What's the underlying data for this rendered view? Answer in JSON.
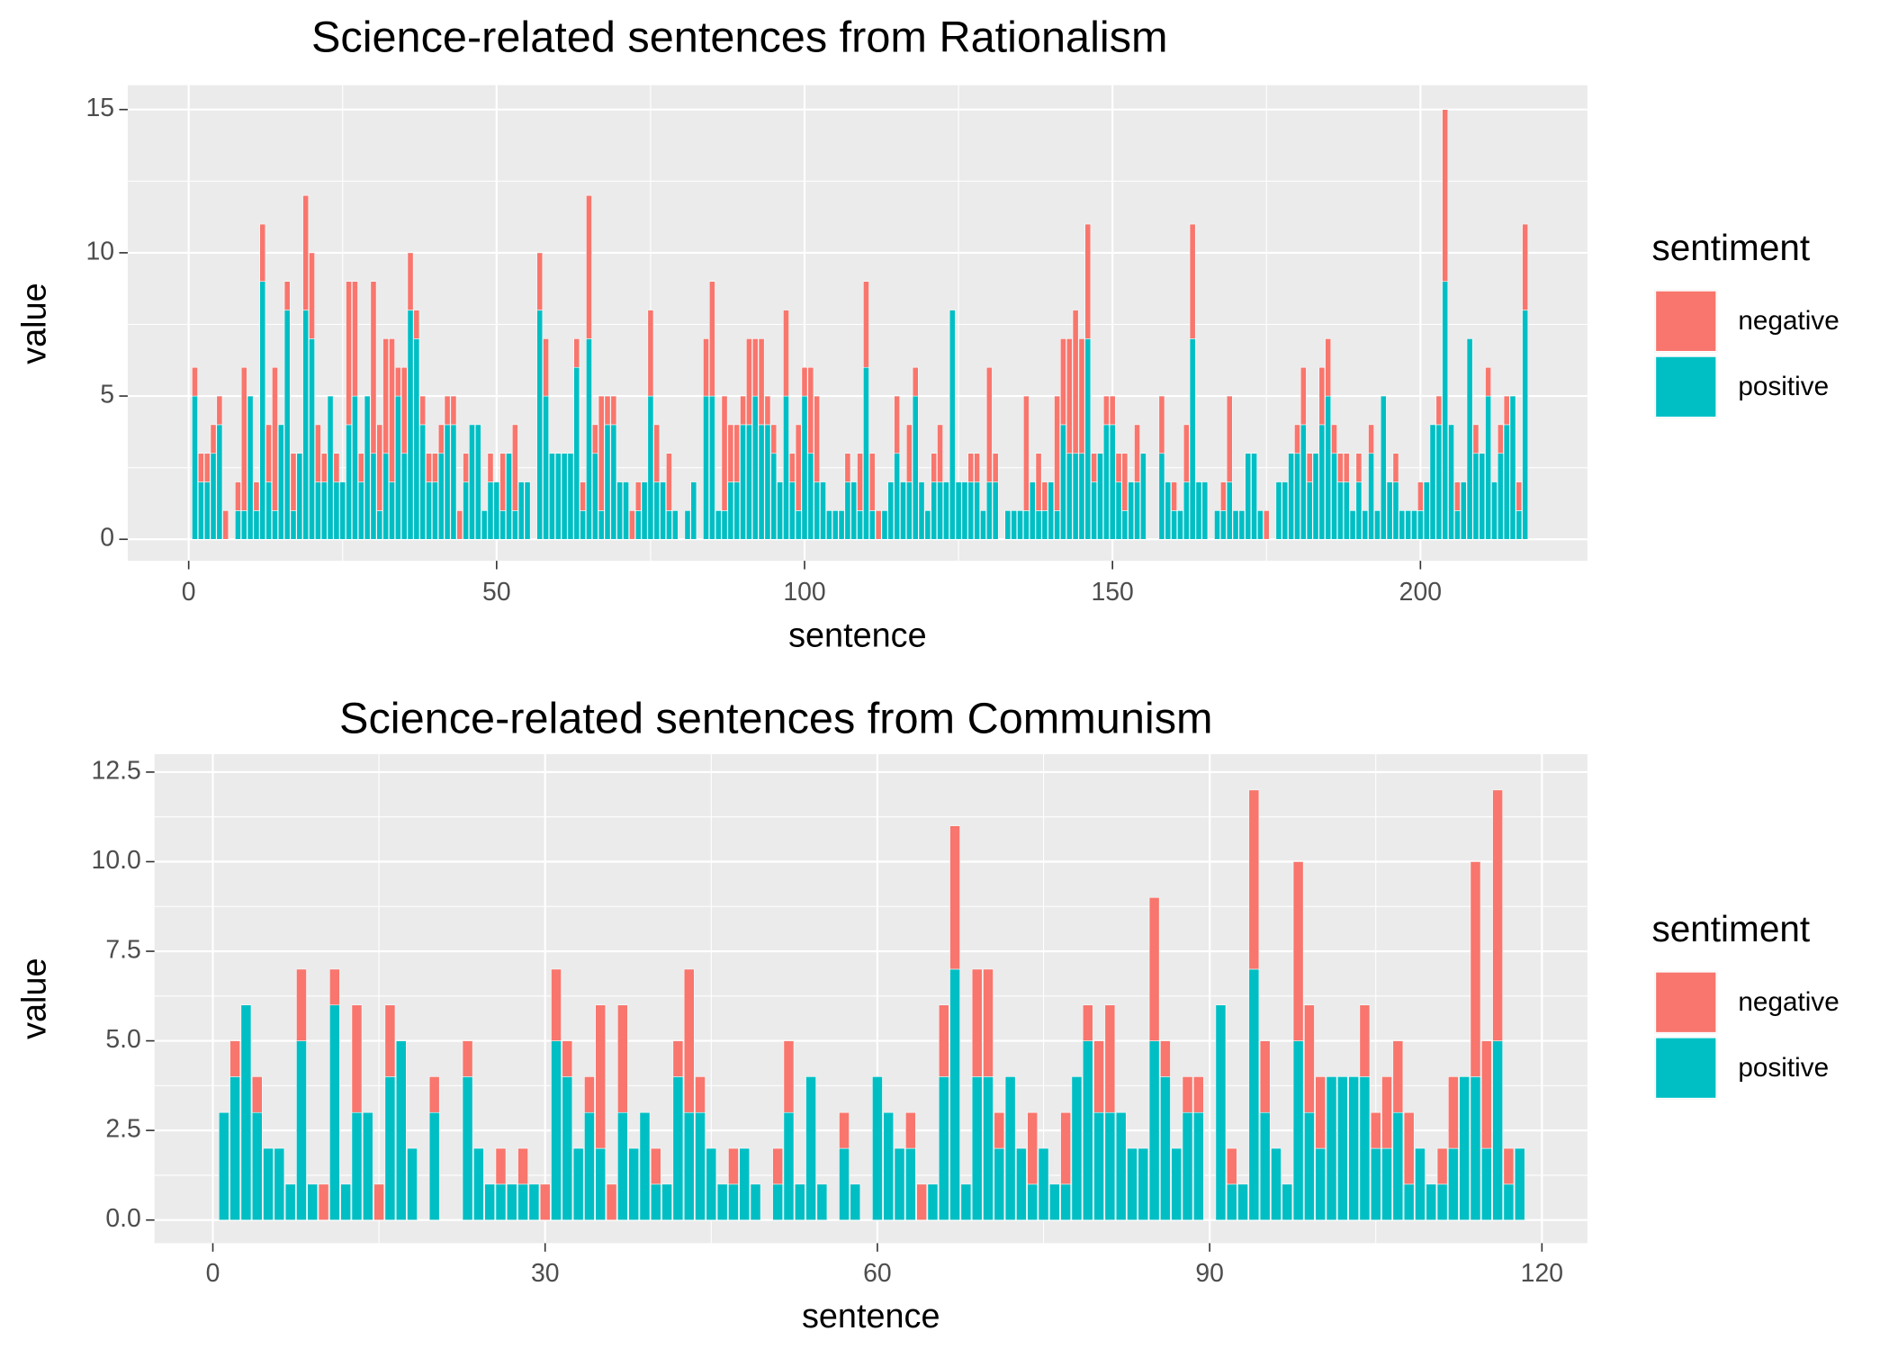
{
  "chart_data": [
    {
      "type": "bar",
      "stacked": true,
      "title": "Science-related sentences from Rationalism",
      "x_label": "sentence",
      "y_label": "value",
      "legend_title": "sentiment",
      "grid": true,
      "x": [
        1,
        2,
        3,
        4,
        5,
        6,
        8,
        9,
        10,
        11,
        12,
        13,
        14,
        15,
        16,
        17,
        18,
        19,
        20,
        21,
        22,
        23,
        24,
        25,
        26,
        27,
        28,
        29,
        30,
        31,
        32,
        33,
        34,
        35,
        36,
        37,
        38,
        39,
        40,
        41,
        42,
        43,
        44,
        45,
        46,
        47,
        48,
        49,
        50,
        51,
        52,
        53,
        54,
        55,
        57,
        58,
        59,
        60,
        61,
        62,
        63,
        64,
        65,
        66,
        67,
        68,
        69,
        70,
        71,
        72,
        73,
        74,
        75,
        76,
        77,
        78,
        79,
        81,
        82,
        84,
        85,
        86,
        87,
        88,
        89,
        90,
        91,
        92,
        93,
        94,
        95,
        96,
        97,
        98,
        99,
        100,
        101,
        102,
        103,
        104,
        105,
        106,
        107,
        108,
        109,
        110,
        111,
        112,
        113,
        114,
        115,
        116,
        117,
        118,
        119,
        120,
        121,
        122,
        123,
        124,
        125,
        126,
        127,
        128,
        129,
        130,
        131,
        133,
        134,
        135,
        136,
        137,
        138,
        139,
        140,
        141,
        142,
        143,
        144,
        145,
        146,
        147,
        148,
        149,
        150,
        151,
        152,
        153,
        154,
        155,
        158,
        159,
        160,
        161,
        162,
        163,
        164,
        165,
        167,
        168,
        169,
        170,
        171,
        172,
        173,
        174,
        175,
        177,
        178,
        179,
        180,
        181,
        182,
        183,
        184,
        185,
        186,
        187,
        188,
        189,
        190,
        191,
        192,
        193,
        194,
        195,
        196,
        197,
        198,
        199,
        200,
        201,
        202,
        203,
        204,
        205,
        206,
        207,
        208,
        209,
        210,
        211,
        212,
        213,
        214,
        215,
        216,
        217
      ],
      "series": [
        {
          "name": "negative",
          "color": "#F8766D",
          "values": [
            1,
            1,
            1,
            1,
            1,
            1,
            1,
            5,
            0,
            1,
            2,
            2,
            5,
            0,
            1,
            2,
            0,
            4,
            3,
            2,
            1,
            0,
            1,
            0,
            5,
            4,
            1,
            0,
            6,
            3,
            4,
            5,
            1,
            3,
            2,
            1,
            1,
            1,
            1,
            1,
            1,
            1,
            1,
            1,
            0,
            0,
            0,
            1,
            0,
            2,
            0,
            3,
            0,
            0,
            2,
            2,
            0,
            0,
            0,
            0,
            1,
            1,
            5,
            1,
            4,
            1,
            1,
            0,
            0,
            1,
            1,
            0,
            3,
            2,
            0,
            2,
            0,
            0,
            0,
            2,
            4,
            0,
            4,
            2,
            2,
            1,
            3,
            2,
            3,
            1,
            1,
            0,
            3,
            1,
            3,
            1,
            3,
            3,
            0,
            0,
            0,
            0,
            1,
            0,
            2,
            3,
            2,
            1,
            0,
            0,
            2,
            0,
            2,
            1,
            0,
            0,
            1,
            2,
            0,
            0,
            0,
            0,
            1,
            1,
            0,
            4,
            1,
            0,
            0,
            0,
            4,
            0,
            2,
            1,
            0,
            4,
            3,
            4,
            5,
            4,
            4,
            1,
            0,
            1,
            1,
            1,
            2,
            0,
            2,
            0,
            2,
            0,
            1,
            0,
            2,
            4,
            0,
            0,
            0,
            1,
            3,
            0,
            0,
            0,
            0,
            0,
            1,
            0,
            0,
            0,
            1,
            2,
            1,
            0,
            2,
            2,
            1,
            1,
            1,
            0,
            1,
            0,
            1,
            0,
            0,
            0,
            1,
            0,
            0,
            0,
            1,
            0,
            0,
            1,
            6,
            0,
            1,
            0,
            0,
            1,
            0,
            1,
            0,
            1,
            1,
            0,
            1,
            3
          ]
        },
        {
          "name": "positive",
          "color": "#00BFC4",
          "values": [
            5,
            2,
            2,
            3,
            4,
            0,
            1,
            1,
            5,
            1,
            9,
            2,
            1,
            4,
            8,
            1,
            3,
            8,
            7,
            2,
            2,
            5,
            2,
            2,
            4,
            5,
            2,
            5,
            3,
            1,
            3,
            2,
            5,
            3,
            8,
            7,
            4,
            2,
            2,
            3,
            4,
            4,
            0,
            2,
            4,
            4,
            1,
            2,
            2,
            1,
            3,
            1,
            2,
            2,
            8,
            5,
            3,
            3,
            3,
            3,
            6,
            1,
            7,
            3,
            1,
            4,
            4,
            2,
            2,
            0,
            1,
            2,
            5,
            2,
            2,
            1,
            1,
            1,
            2,
            5,
            5,
            1,
            1,
            2,
            2,
            4,
            4,
            5,
            4,
            4,
            3,
            2,
            5,
            2,
            1,
            5,
            3,
            2,
            2,
            1,
            1,
            1,
            2,
            2,
            1,
            6,
            1,
            0,
            1,
            2,
            3,
            2,
            2,
            5,
            2,
            1,
            2,
            2,
            2,
            8,
            2,
            2,
            2,
            2,
            1,
            2,
            2,
            1,
            1,
            1,
            1,
            2,
            1,
            1,
            2,
            1,
            4,
            3,
            3,
            3,
            7,
            2,
            3,
            4,
            4,
            2,
            1,
            2,
            2,
            3,
            3,
            2,
            1,
            1,
            2,
            7,
            2,
            2,
            1,
            1,
            2,
            1,
            1,
            3,
            3,
            1,
            0,
            2,
            2,
            3,
            3,
            4,
            2,
            3,
            4,
            5,
            3,
            2,
            2,
            1,
            2,
            1,
            3,
            1,
            5,
            2,
            2,
            1,
            1,
            1,
            1,
            2,
            4,
            4,
            9,
            4,
            1,
            2,
            7,
            3,
            3,
            5,
            2,
            3,
            4,
            5,
            1,
            8
          ]
        }
      ],
      "xlim": [
        -9.9,
        227.1
      ],
      "xticks": [
        0,
        50,
        100,
        150,
        200
      ],
      "ylim": [
        -0.75,
        15.85
      ],
      "yticks": [
        0,
        5,
        10,
        15
      ]
    },
    {
      "type": "bar",
      "stacked": true,
      "title": "Science-related sentences from Communism",
      "x_label": "sentence",
      "y_label": "value",
      "legend_title": "sentiment",
      "grid": true,
      "x": [
        1,
        2,
        3,
        4,
        5,
        6,
        7,
        8,
        9,
        10,
        11,
        12,
        13,
        14,
        15,
        16,
        17,
        18,
        20,
        23,
        24,
        25,
        26,
        27,
        28,
        29,
        30,
        31,
        32,
        33,
        34,
        35,
        36,
        37,
        38,
        39,
        40,
        41,
        42,
        43,
        44,
        45,
        46,
        47,
        48,
        49,
        51,
        52,
        53,
        54,
        55,
        57,
        58,
        60,
        61,
        62,
        63,
        64,
        65,
        66,
        67,
        68,
        69,
        70,
        71,
        72,
        73,
        74,
        75,
        76,
        77,
        78,
        79,
        80,
        81,
        82,
        83,
        84,
        85,
        86,
        87,
        88,
        89,
        91,
        92,
        93,
        94,
        95,
        96,
        97,
        98,
        99,
        100,
        101,
        102,
        103,
        104,
        105,
        106,
        107,
        108,
        109,
        110,
        111,
        112,
        113,
        114,
        115,
        116,
        117,
        118
      ],
      "series": [
        {
          "name": "negative",
          "color": "#F8766D",
          "values": [
            0,
            1,
            0,
            1,
            0,
            0,
            0,
            2,
            0,
            1,
            1,
            0,
            3,
            0,
            1,
            2,
            0,
            0,
            1,
            1,
            0,
            0,
            1,
            0,
            1,
            0,
            1,
            2,
            1,
            0,
            1,
            4,
            1,
            3,
            0,
            0,
            1,
            0,
            1,
            4,
            1,
            0,
            0,
            1,
            0,
            0,
            1,
            2,
            0,
            0,
            0,
            1,
            0,
            0,
            0,
            0,
            1,
            1,
            0,
            2,
            4,
            0,
            3,
            3,
            1,
            0,
            0,
            2,
            0,
            0,
            2,
            0,
            1,
            2,
            3,
            0,
            0,
            0,
            4,
            1,
            0,
            1,
            1,
            0,
            1,
            0,
            5,
            2,
            0,
            0,
            5,
            3,
            2,
            0,
            0,
            0,
            2,
            1,
            2,
            2,
            2,
            0,
            0,
            1,
            2,
            0,
            6,
            3,
            7,
            1,
            0
          ]
        },
        {
          "name": "positive",
          "color": "#00BFC4",
          "values": [
            3,
            4,
            6,
            3,
            2,
            2,
            1,
            5,
            1,
            0,
            6,
            1,
            3,
            3,
            0,
            4,
            5,
            2,
            3,
            4,
            2,
            1,
            1,
            1,
            1,
            1,
            0,
            5,
            4,
            2,
            3,
            2,
            0,
            3,
            2,
            3,
            1,
            1,
            4,
            3,
            3,
            2,
            1,
            1,
            2,
            1,
            1,
            3,
            1,
            4,
            1,
            2,
            1,
            4,
            3,
            2,
            2,
            0,
            1,
            4,
            7,
            1,
            4,
            4,
            2,
            4,
            2,
            1,
            2,
            1,
            1,
            4,
            5,
            3,
            3,
            3,
            2,
            2,
            5,
            4,
            2,
            3,
            3,
            6,
            1,
            1,
            7,
            3,
            2,
            1,
            5,
            3,
            2,
            4,
            4,
            4,
            4,
            2,
            2,
            3,
            1,
            2,
            1,
            1,
            2,
            4,
            4,
            2,
            5,
            1,
            2
          ]
        }
      ],
      "xlim": [
        -5.27,
        124.1
      ],
      "xticks": [
        0,
        30,
        60,
        90,
        120
      ],
      "ylim": [
        -0.645,
        13.0
      ],
      "yticks": [
        {
          "value": 0,
          "label": "0.0"
        },
        2.5,
        {
          "value": 5,
          "label": "5.0"
        },
        7.5,
        {
          "value": 10,
          "label": "10.0"
        },
        12.5
      ]
    }
  ]
}
